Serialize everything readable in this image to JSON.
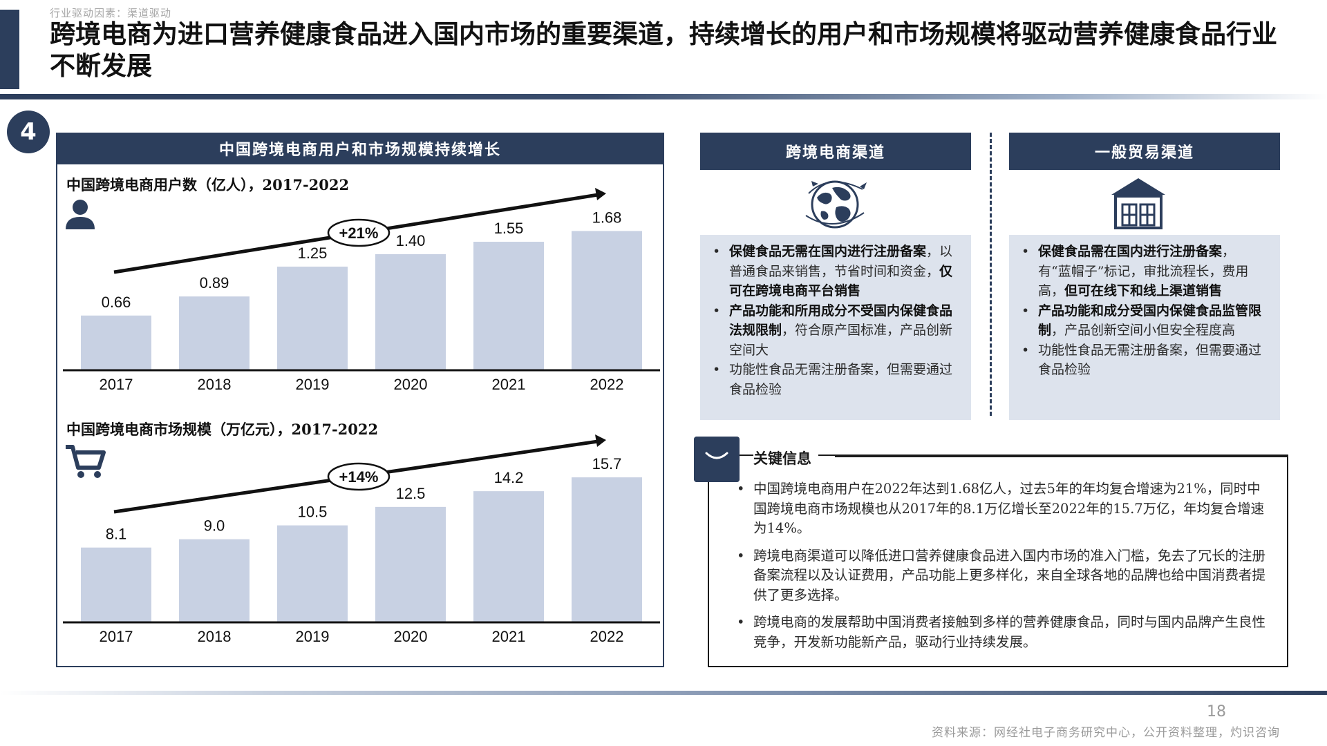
{
  "header": {
    "breadcrumb": "行业驱动因素：渠道驱动",
    "title": "跨境电商为进口营养健康食品进入国内市场的重要渠道，持续增长的用户和市场规模将驱动营养健康食品行业不断发展"
  },
  "badge": "4",
  "left_panel": {
    "header": "中国跨境电商用户和市场规模持续增长",
    "user_icon": "person-icon",
    "cart_icon": "shopping-cart-icon"
  },
  "chart_data": [
    {
      "type": "bar",
      "title": "中国跨境电商用户数（亿人），2017-2022",
      "categories": [
        "2017",
        "2018",
        "2019",
        "2020",
        "2021",
        "2022"
      ],
      "values": [
        0.66,
        0.89,
        1.25,
        1.4,
        1.55,
        1.68
      ],
      "value_labels": [
        "0.66",
        "0.89",
        "1.25",
        "1.40",
        "1.55",
        "1.68"
      ],
      "ylim": [
        0,
        1.9
      ],
      "annotation": "+21%",
      "bar_color": "#c8d1e3",
      "grid": false
    },
    {
      "type": "bar",
      "title": "中国跨境电商市场规模（万亿元），2017-2022",
      "categories": [
        "2017",
        "2018",
        "2019",
        "2020",
        "2021",
        "2022"
      ],
      "values": [
        8.1,
        9.0,
        10.5,
        12.5,
        14.2,
        15.7
      ],
      "value_labels": [
        "8.1",
        "9.0",
        "10.5",
        "12.5",
        "14.2",
        "15.7"
      ],
      "ylim": [
        0,
        17.5
      ],
      "annotation": "+14%",
      "bar_color": "#c8d1e3",
      "grid": false
    }
  ],
  "channels": {
    "cross_border": {
      "title": "跨境电商渠道",
      "icon": "globe-plane-icon",
      "b1_bold1": "保健食品无需在国内进行注册备案",
      "b1_normal": "，以普通食品来销售，节省时间和资金，",
      "b1_bold2": "仅可在跨境电商平台销售",
      "b2_bold": "产品功能和所用成分不受国内保健食品法规限制",
      "b2_normal": "，符合原产国标准，产品创新空间大",
      "b3": "功能性食品无需注册备案，但需要通过食品检验"
    },
    "general_trade": {
      "title": "一般贸易渠道",
      "icon": "store-icon",
      "b1_bold1": "保健食品需在国内进行注册备案",
      "b1_normal": "，有“蓝帽子”标记，审批流程长，费用高，",
      "b1_bold2": "但可在线下和线上渠道销售",
      "b2_bold": "产品功能和成分受国内保健食品监管限制",
      "b2_normal": "，产品创新空间小但安全程度高",
      "b3": "功能性食品无需注册备案，但需要通过食品检验"
    }
  },
  "key_info": {
    "title": "关键信息",
    "icon": "shopping-bag-icon",
    "items": [
      "中国跨境电商用户在2022年达到1.68亿人，过去5年的年均复合增速为21%，同时中国跨境电商市场规模也从2017年的8.1万亿增长至2022年的15.7万亿，年均复合增速为14%。",
      "跨境电商渠道可以降低进口营养健康食品进入国内市场的准入门槛，免去了冗长的注册备案流程以及认证费用，产品功能上更多样化，来自全球各地的品牌也给中国消费者提供了更多选择。",
      "跨境电商的发展帮助中国消费者接触到多样的营养健康食品，同时与国内品牌产生良性竞争，开发新功能新产品，驱动行业持续发展。"
    ]
  },
  "footer": {
    "page_number": "18",
    "source": "资料来源：网经社电子商务研究中心，公开资料整理，灼识咨询"
  },
  "colors": {
    "navy": "#2c3e5c",
    "bar": "#c8d1e3",
    "card_bg": "#dde3ed"
  }
}
